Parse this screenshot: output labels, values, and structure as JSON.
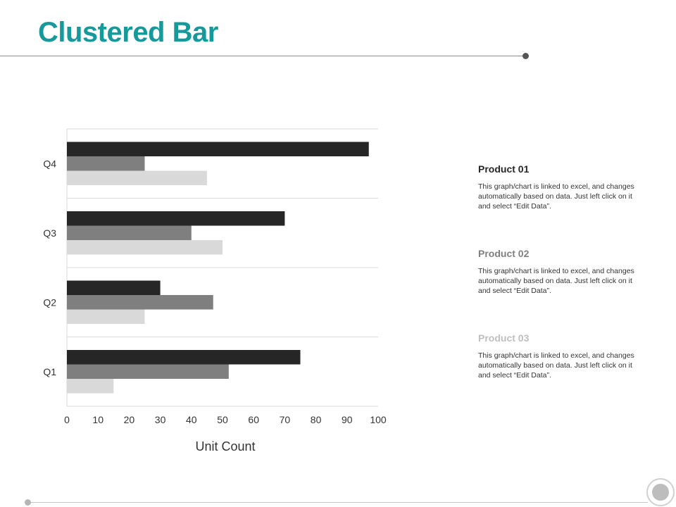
{
  "slide": {
    "title": "Clustered Bar"
  },
  "colors": {
    "title": "#16999b",
    "product_01": "#262626",
    "product_02": "#7f7f7f",
    "product_03": "#d9d9d9"
  },
  "chart_data": {
    "type": "bar",
    "orientation": "horizontal",
    "categories": [
      "Q1",
      "Q2",
      "Q3",
      "Q4"
    ],
    "series": [
      {
        "name": "Product 01",
        "values": [
          75,
          30,
          70,
          97
        ],
        "color": "#262626"
      },
      {
        "name": "Product 02",
        "values": [
          52,
          47,
          40,
          25
        ],
        "color": "#7f7f7f"
      },
      {
        "name": "Product 03",
        "values": [
          15,
          25,
          50,
          45
        ],
        "color": "#d9d9d9"
      }
    ],
    "xlabel": "Unit Count",
    "ylabel": "",
    "xlim": [
      0,
      100
    ],
    "xticks": [
      "0",
      "10",
      "20",
      "30",
      "40",
      "50",
      "60",
      "70",
      "80",
      "90",
      "100"
    ],
    "grid": true,
    "legend": "right"
  },
  "legend": {
    "items": [
      {
        "name": "Product 01",
        "name_color": "#262626",
        "description": "This graph/chart is linked to excel, and changes automatically based on data. Just left click on it and select “Edit Data”."
      },
      {
        "name": "Product 02",
        "name_color": "#7f7f7f",
        "description": "This graph/chart is linked to excel, and changes automatically based on data. Just left click on it and select “Edit Data”."
      },
      {
        "name": "Product 03",
        "name_color": "#bfbfbf",
        "description": "This graph/chart is linked to excel, and changes automatically based on data. Just left click on it and select “Edit Data”."
      }
    ]
  }
}
